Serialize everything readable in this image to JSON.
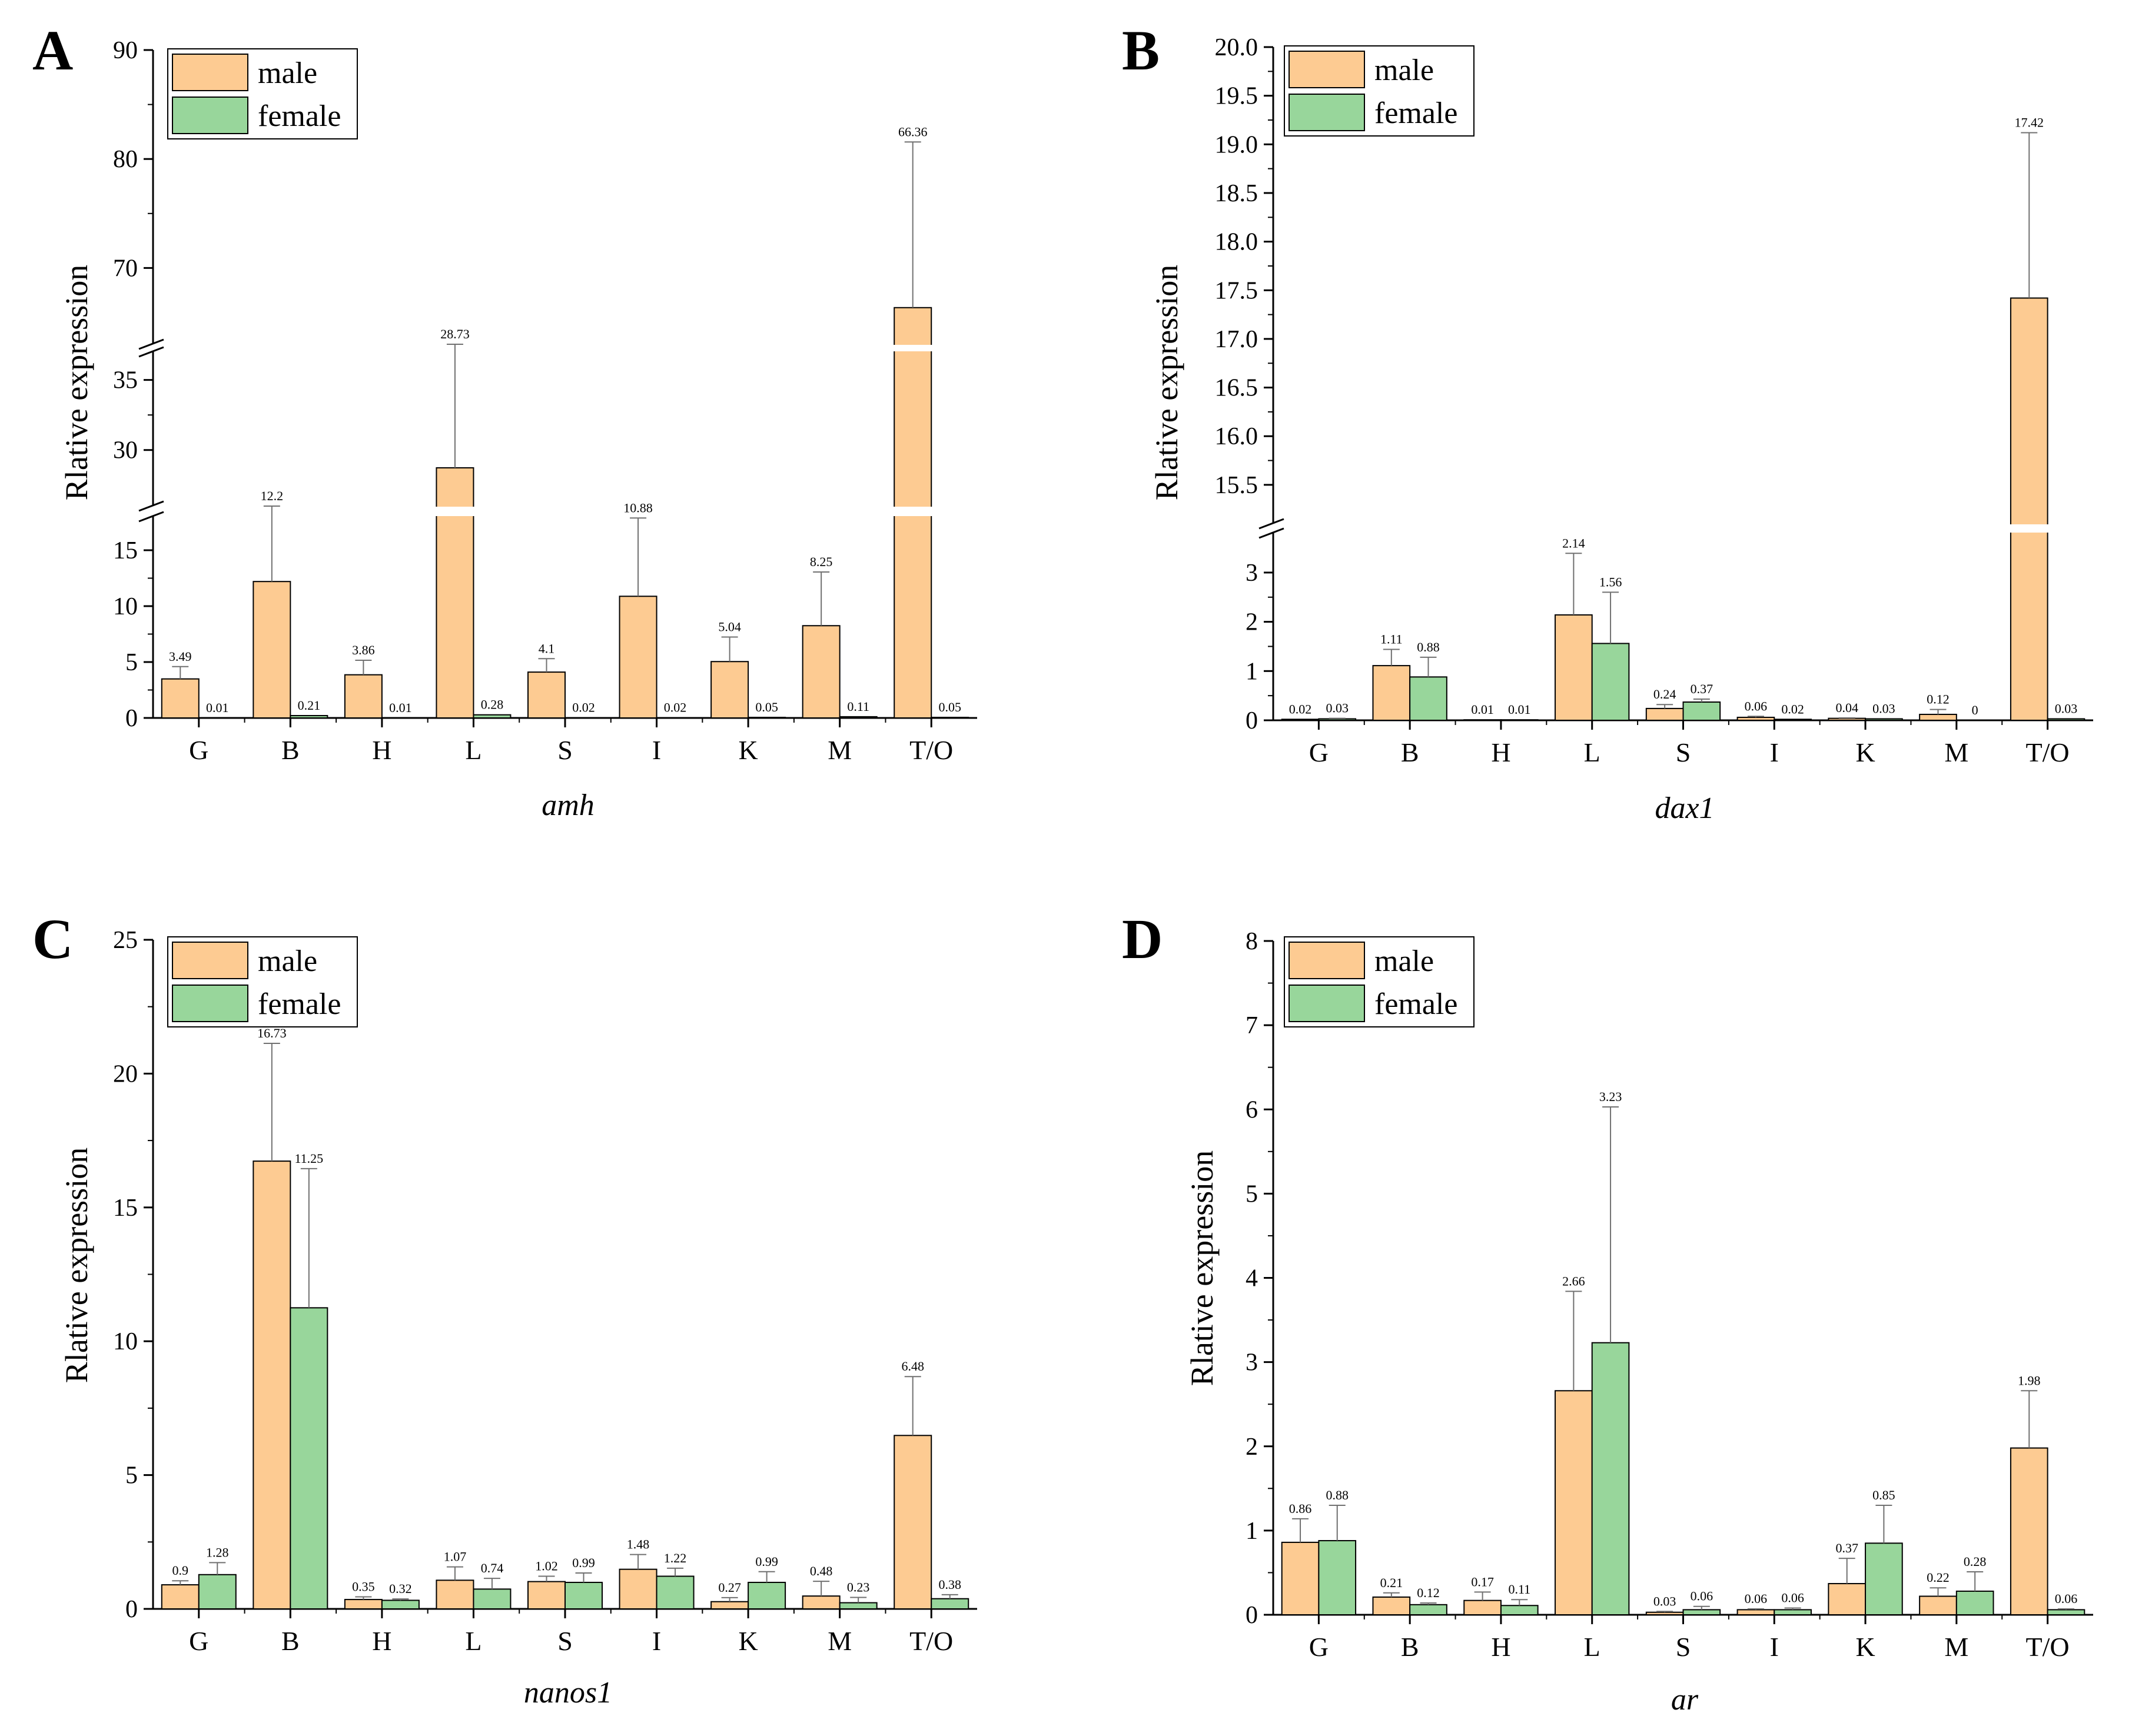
{
  "colors": {
    "male": "#FDCB92",
    "female": "#98D69B",
    "axis": "#000000",
    "error": "#707070"
  },
  "chart_data": [
    {
      "panel": "A",
      "type": "bar",
      "title": "",
      "xlabel": "amh",
      "ylabel": "Rlative expression",
      "categories": [
        "G",
        "B",
        "H",
        "L",
        "S",
        "I",
        "K",
        "M",
        "T/O"
      ],
      "series": [
        {
          "name": "male",
          "values": [
            3.49,
            12.2,
            3.86,
            28.73,
            4.1,
            10.88,
            5.04,
            8.25,
            66.36
          ],
          "errors": [
            1.1,
            6.8,
            1.3,
            12.0,
            1.2,
            7.0,
            2.2,
            4.8,
            15.2
          ],
          "labels": [
            "3.49",
            "12.2",
            "3.86",
            "28.73",
            "4.1",
            "10.88",
            "5.04",
            "8.25",
            "66.36"
          ]
        },
        {
          "name": "female",
          "values": [
            0.01,
            0.21,
            0.01,
            0.28,
            0.02,
            0.02,
            0.05,
            0.11,
            0.05
          ],
          "errors": [
            0,
            0,
            0,
            0,
            0,
            0,
            0,
            0,
            0
          ],
          "labels": [
            "0.01",
            "0.21",
            "0.01",
            "0.28",
            "0.02",
            "0.02",
            "0.05",
            "0.11",
            "0.05"
          ]
        }
      ],
      "ylim": [
        0,
        90
      ],
      "axis_breaks": [
        [
          18,
          26
        ],
        [
          37,
          63
        ]
      ],
      "y_ticks": [
        0,
        5,
        10,
        15,
        30,
        35,
        70,
        80,
        90
      ],
      "y_tick_labels": [
        "0",
        "5",
        "10",
        "15",
        "30",
        "35",
        "70",
        "80",
        "90"
      ],
      "legend_position": "top-left"
    },
    {
      "panel": "B",
      "type": "bar",
      "title": "",
      "xlabel": "dax1",
      "ylabel": "Rlative expression",
      "categories": [
        "G",
        "B",
        "H",
        "L",
        "S",
        "I",
        "K",
        "M",
        "T/O"
      ],
      "series": [
        {
          "name": "male",
          "values": [
            0.02,
            1.11,
            0.01,
            2.14,
            0.24,
            0.06,
            0.04,
            0.12,
            17.42
          ],
          "errors": [
            0,
            0.33,
            0,
            1.25,
            0.08,
            0.02,
            0.01,
            0.1,
            1.7
          ],
          "labels": [
            "0.02",
            "1.11",
            "0.01",
            "2.14",
            "0.24",
            "0.06",
            "0.04",
            "0.12",
            "17.42"
          ]
        },
        {
          "name": "female",
          "values": [
            0.03,
            0.88,
            0.01,
            1.56,
            0.37,
            0.02,
            0.03,
            0,
            0.03
          ],
          "errors": [
            0.01,
            0.4,
            0,
            1.04,
            0.06,
            0,
            0,
            0,
            0
          ],
          "labels": [
            "0.03",
            "0.88",
            "0.01",
            "1.56",
            "0.37",
            "0.02",
            "0.03",
            "0",
            "0.03"
          ]
        }
      ],
      "ylim": [
        0,
        20
      ],
      "axis_breaks": [
        [
          3.8,
          15.1
        ]
      ],
      "y_ticks": [
        0,
        1,
        2,
        3,
        15.5,
        16.0,
        16.5,
        17.0,
        17.5,
        18.0,
        18.5,
        19.0,
        19.5,
        20.0
      ],
      "y_tick_labels": [
        "0",
        "1",
        "2",
        "3",
        "15.5",
        "16.0",
        "16.5",
        "17.0",
        "17.5",
        "18.0",
        "18.5",
        "19.0",
        "19.5",
        "20.0"
      ],
      "legend_position": "top-left"
    },
    {
      "panel": "C",
      "type": "bar",
      "title": "",
      "xlabel": "nanos1",
      "ylabel": "Rlative expression",
      "categories": [
        "G",
        "B",
        "H",
        "L",
        "S",
        "I",
        "K",
        "M",
        "T/O"
      ],
      "series": [
        {
          "name": "male",
          "values": [
            0.9,
            16.73,
            0.35,
            1.07,
            1.02,
            1.48,
            0.27,
            0.48,
            6.48
          ],
          "errors": [
            0.15,
            4.4,
            0.1,
            0.5,
            0.2,
            0.55,
            0.15,
            0.55,
            2.2
          ],
          "labels": [
            "0.9",
            "16.73",
            "0.35",
            "1.07",
            "1.02",
            "1.48",
            "0.27",
            "0.48",
            "6.48"
          ]
        },
        {
          "name": "female",
          "values": [
            1.28,
            11.25,
            0.32,
            0.74,
            0.99,
            1.22,
            0.99,
            0.23,
            0.38
          ],
          "errors": [
            0.45,
            5.2,
            0.05,
            0.4,
            0.35,
            0.3,
            0.4,
            0.2,
            0.15
          ],
          "labels": [
            "1.28",
            "11.25",
            "0.32",
            "0.74",
            "0.99",
            "1.22",
            "0.99",
            "0.23",
            "0.38"
          ]
        }
      ],
      "ylim": [
        0,
        25
      ],
      "axis_breaks": [],
      "y_ticks": [
        0,
        5,
        10,
        15,
        20,
        25
      ],
      "y_tick_labels": [
        "0",
        "5",
        "10",
        "15",
        "20",
        "25"
      ],
      "legend_position": "top-left"
    },
    {
      "panel": "D",
      "type": "bar",
      "title": "",
      "xlabel": "ar",
      "ylabel": "Rlative expression",
      "categories": [
        "G",
        "B",
        "H",
        "L",
        "S",
        "I",
        "K",
        "M",
        "T/O"
      ],
      "series": [
        {
          "name": "male",
          "values": [
            0.86,
            0.21,
            0.17,
            2.66,
            0.03,
            0.06,
            0.37,
            0.22,
            1.98
          ],
          "errors": [
            0.28,
            0.05,
            0.1,
            1.18,
            0.01,
            0.01,
            0.3,
            0.1,
            0.68
          ],
          "labels": [
            "0.86",
            "0.21",
            "0.17",
            "2.66",
            "0.03",
            "0.06",
            "0.37",
            "0.22",
            "1.98"
          ]
        },
        {
          "name": "female",
          "values": [
            0.88,
            0.12,
            0.11,
            3.23,
            0.06,
            0.06,
            0.85,
            0.28,
            0.06
          ],
          "errors": [
            0.42,
            0.02,
            0.07,
            2.8,
            0.04,
            0.02,
            0.45,
            0.23,
            0.01
          ],
          "labels": [
            "0.88",
            "0.12",
            "0.11",
            "3.23",
            "0.06",
            "0.06",
            "0.85",
            "0.28",
            "0.06"
          ]
        }
      ],
      "ylim": [
        0,
        8
      ],
      "axis_breaks": [],
      "y_ticks": [
        0,
        1,
        2,
        3,
        4,
        5,
        6,
        7,
        8
      ],
      "y_tick_labels": [
        "0",
        "1",
        "2",
        "3",
        "4",
        "5",
        "6",
        "7",
        "8"
      ],
      "legend_position": "top-left"
    }
  ]
}
